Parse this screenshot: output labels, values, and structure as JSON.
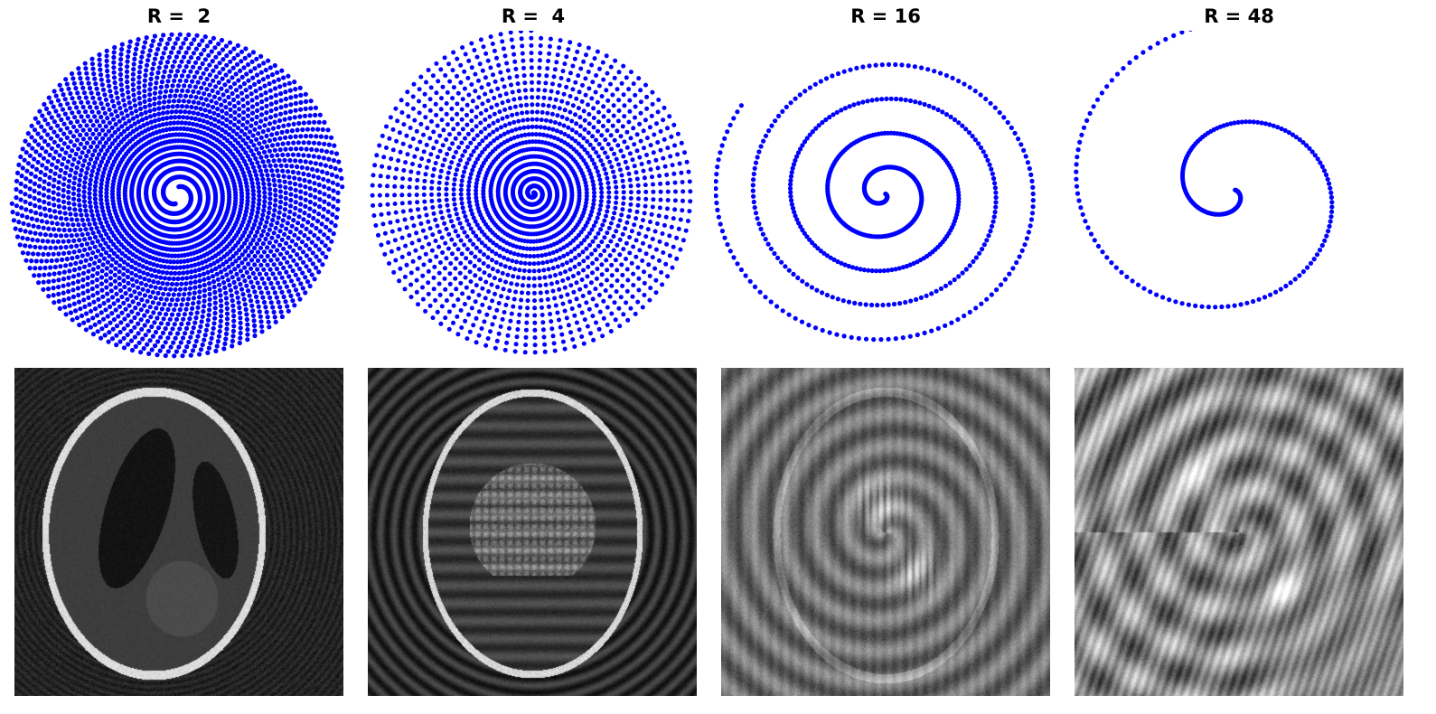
{
  "chart_data": [
    {
      "type": "scatter",
      "title": "R =  2",
      "acceleration": 2,
      "trajectory": "variable-density spiral interleaves (k-space sampling)",
      "marker_color": "#0000ff",
      "axes": "off"
    },
    {
      "type": "scatter",
      "title": "R =  4",
      "acceleration": 4,
      "trajectory": "variable-density spiral interleaves (k-space sampling)",
      "marker_color": "#0000ff",
      "axes": "off"
    },
    {
      "type": "scatter",
      "title": "R = 16",
      "acceleration": 16,
      "trajectory": "single spiral arm (k-space sampling)",
      "marker_color": "#0000ff",
      "axes": "off"
    },
    {
      "type": "scatter",
      "title": "R = 48",
      "acceleration": 48,
      "trajectory": "single spiral arm (k-space sampling)",
      "marker_color": "#0000ff",
      "axes": "off"
    },
    {
      "type": "heatmap",
      "acceleration": 2,
      "content": "Shepp-Logan phantom reconstruction",
      "colormap": "gray",
      "axes": "off"
    },
    {
      "type": "heatmap",
      "acceleration": 4,
      "content": "Shepp-Logan phantom reconstruction",
      "colormap": "gray",
      "axes": "off"
    },
    {
      "type": "heatmap",
      "acceleration": 16,
      "content": "Shepp-Logan phantom reconstruction",
      "colormap": "gray",
      "axes": "off"
    },
    {
      "type": "heatmap",
      "acceleration": 48,
      "content": "Shepp-Logan phantom reconstruction",
      "colormap": "gray",
      "axes": "off"
    }
  ]
}
